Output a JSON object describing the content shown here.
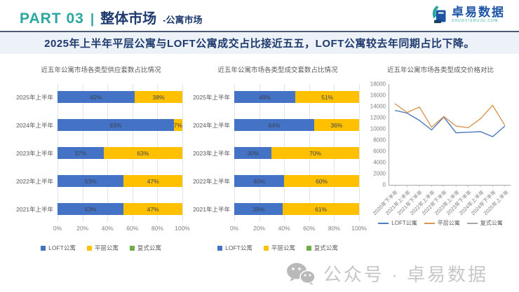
{
  "header": {
    "part_label": "PART 03",
    "separator": "|",
    "title": "整体市场",
    "subtitle": "-公寓市场",
    "logo": {
      "name": "卓易数据",
      "tagline": "zhuoyishuju.com"
    }
  },
  "headline": "2025年上半年平层公寓与LOFT公寓成交占比接近五五，LOFT公寓较去年同期占比下降。",
  "watermark": "公众号 · 卓易数据",
  "colors": {
    "teal": "#2ba7a0",
    "navy": "#1e3a6d",
    "loft_blue": "#4472c4",
    "flat_yellow": "#ffc000",
    "duplex_green": "#70ad47",
    "line_blue": "#4f7cba",
    "line_orange": "#d9974f",
    "line_gray": "#a6a6a6",
    "band_bg": "#edf1f8",
    "grid": "#dce6f1",
    "axis_text": "#7f7f7f"
  },
  "chart_data": [
    {
      "type": "bar",
      "orientation": "horizontal",
      "stacked": true,
      "title": "近五年公寓市场各类型供应套数占比情况",
      "categories": [
        "2025年上半年",
        "2024年上半年",
        "2023年上半年",
        "2022年上半年",
        "2021年上半年"
      ],
      "series": [
        {
          "name": "LOFT公寓",
          "color": "#4472c4",
          "values": [
            62,
            93,
            37,
            53,
            53
          ]
        },
        {
          "name": "平层公寓",
          "color": "#ffc000",
          "values": [
            38,
            7,
            63,
            47,
            47
          ]
        },
        {
          "name": "复式公寓",
          "color": "#70ad47",
          "values": [
            0,
            0,
            0,
            0,
            0
          ]
        }
      ],
      "x_ticks": [
        "0%",
        "20%",
        "40%",
        "60%",
        "80%",
        "100%"
      ],
      "xlim": [
        0,
        100
      ],
      "unit": "%",
      "grid": true,
      "legend_position": "bottom"
    },
    {
      "type": "bar",
      "orientation": "horizontal",
      "stacked": true,
      "title": "近五年公寓市场各类型成交套数占比情况",
      "categories": [
        "2025年上半年",
        "2024年上半年",
        "2023年上半年",
        "2022年上半年",
        "2021年上半年"
      ],
      "series": [
        {
          "name": "LOFT公寓",
          "color": "#4472c4",
          "values": [
            49,
            64,
            30,
            40,
            39
          ]
        },
        {
          "name": "平层公寓",
          "color": "#ffc000",
          "values": [
            51,
            36,
            70,
            60,
            61
          ]
        },
        {
          "name": "复式公寓",
          "color": "#70ad47",
          "values": [
            0,
            0,
            0,
            0,
            0
          ]
        }
      ],
      "x_ticks": [
        "0%",
        "20%",
        "40%",
        "60%",
        "80%",
        "100%"
      ],
      "xlim": [
        0,
        100
      ],
      "unit": "%",
      "grid": true,
      "legend_position": "bottom"
    },
    {
      "type": "line",
      "title": "近五年公寓市场各类型成交价格对比",
      "x": [
        "2020年下半年",
        "2021年上半年",
        "2021年下半年",
        "2022年上半年",
        "2022年下半年",
        "2023年上半年",
        "2023年下半年",
        "2024年上半年",
        "2024年下半年",
        "2025年上半年"
      ],
      "series": [
        {
          "name": "LOFT公寓",
          "color": "#4f7cba",
          "values": [
            13300,
            12800,
            11500,
            9800,
            12100,
            9300,
            9400,
            9500,
            8600,
            10500
          ]
        },
        {
          "name": "平层公寓",
          "color": "#d9974f",
          "values": [
            14500,
            12900,
            13900,
            10300,
            12200,
            10500,
            10200,
            11800,
            14200,
            10600
          ]
        },
        {
          "name": "复式公寓",
          "color": "#a6a6a6",
          "values": []
        }
      ],
      "ylim": [
        0,
        18000
      ],
      "y_ticks": [
        0,
        2000,
        4000,
        6000,
        8000,
        10000,
        12000,
        14000,
        16000,
        18000
      ],
      "grid": false,
      "legend_position": "bottom"
    }
  ]
}
